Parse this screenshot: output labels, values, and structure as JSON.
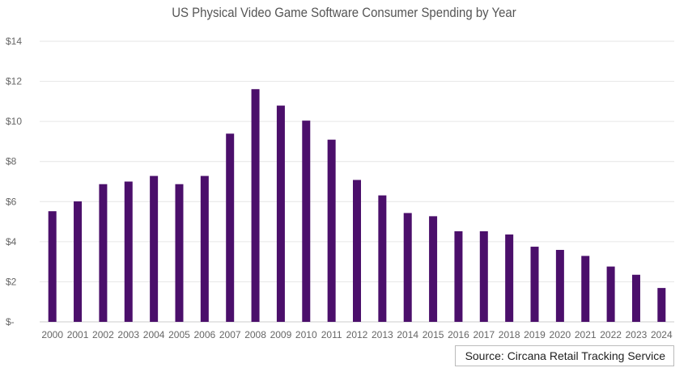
{
  "chart_data": {
    "type": "bar",
    "title": "US Physical Video Game Software Consumer Spending by Year",
    "xlabel": "",
    "ylabel": "",
    "categories": [
      "2000",
      "2001",
      "2002",
      "2003",
      "2004",
      "2005",
      "2006",
      "2007",
      "2008",
      "2009",
      "2010",
      "2011",
      "2012",
      "2013",
      "2014",
      "2015",
      "2016",
      "2017",
      "2018",
      "2019",
      "2020",
      "2021",
      "2022",
      "2023",
      "2024"
    ],
    "values": [
      5.52,
      6.01,
      6.87,
      7.0,
      7.28,
      6.87,
      7.28,
      9.39,
      11.61,
      10.79,
      10.04,
      9.09,
      7.08,
      6.31,
      5.43,
      5.27,
      4.52,
      4.52,
      4.36,
      3.75,
      3.59,
      3.29,
      2.76,
      2.35,
      1.69
    ],
    "ylim": [
      0,
      14
    ],
    "yticks": [
      0,
      2,
      4,
      6,
      8,
      10,
      12,
      14
    ],
    "ytick_labels": [
      "$-",
      "$2",
      "$4",
      "$6",
      "$8",
      "$10",
      "$12",
      "$14"
    ],
    "grid": true,
    "bar_color": "#4b0f6b",
    "source": "Source: Circana Retail Tracking Service"
  }
}
